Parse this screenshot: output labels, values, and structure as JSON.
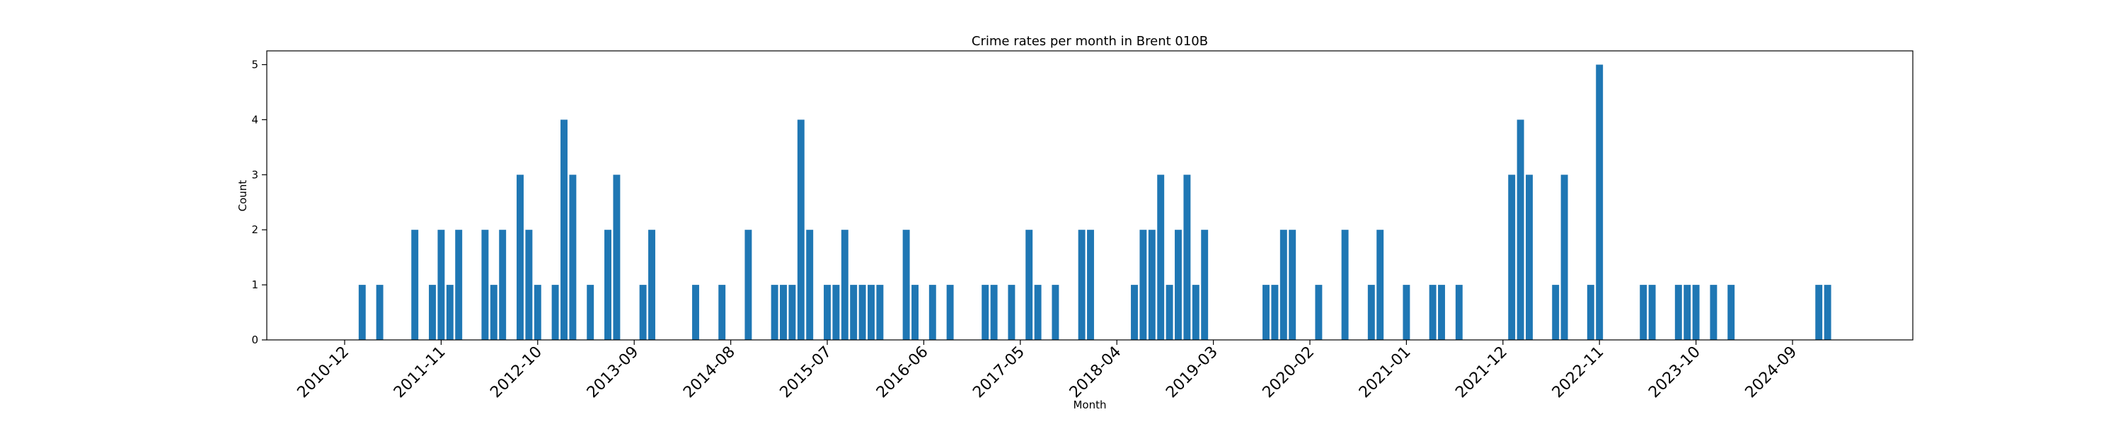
{
  "chart_data": {
    "type": "bar",
    "title": "Crime rates per month in Brent 010B",
    "xlabel": "Month",
    "ylabel": "Count",
    "ylim": [
      0,
      5.25
    ],
    "yticks": [
      "0",
      "1",
      "2",
      "3",
      "4",
      "5"
    ],
    "xticks": [
      "2010-12",
      "2011-11",
      "2012-10",
      "2013-09",
      "2014-08",
      "2015-07",
      "2016-06",
      "2017-05",
      "2018-04",
      "2019-03",
      "2020-02",
      "2021-01",
      "2021-12",
      "2022-11",
      "2023-10",
      "2024-09"
    ],
    "bar_color": "#1f77b4",
    "grid": false,
    "categories": [
      "2011-02",
      "2011-04",
      "2011-08",
      "2011-10",
      "2011-11",
      "2011-12",
      "2012-01",
      "2012-04",
      "2012-05",
      "2012-06",
      "2012-08",
      "2012-09",
      "2012-10",
      "2012-12",
      "2013-01",
      "2013-02",
      "2013-04",
      "2013-06",
      "2013-07",
      "2013-10",
      "2013-11",
      "2014-04",
      "2014-07",
      "2014-10",
      "2015-01",
      "2015-02",
      "2015-03",
      "2015-04",
      "2015-05",
      "2015-07",
      "2015-08",
      "2015-09",
      "2015-10",
      "2015-11",
      "2015-12",
      "2016-01",
      "2016-04",
      "2016-05",
      "2016-07",
      "2016-09",
      "2017-01",
      "2017-02",
      "2017-04",
      "2017-06",
      "2017-07",
      "2017-09",
      "2017-12",
      "2018-01",
      "2018-06",
      "2018-07",
      "2018-08",
      "2018-09",
      "2018-10",
      "2018-11",
      "2018-12",
      "2019-01",
      "2019-02",
      "2019-09",
      "2019-10",
      "2019-11",
      "2019-12",
      "2020-03",
      "2020-06",
      "2020-09",
      "2020-10",
      "2021-01",
      "2021-04",
      "2021-05",
      "2021-07",
      "2022-01",
      "2022-02",
      "2022-03",
      "2022-06",
      "2022-07",
      "2022-10",
      "2022-11",
      "2023-04",
      "2023-05",
      "2023-08",
      "2023-09",
      "2023-10",
      "2023-12",
      "2024-02",
      "2024-12",
      "2025-01"
    ],
    "values": [
      1,
      1,
      2,
      1,
      2,
      1,
      2,
      2,
      1,
      2,
      3,
      2,
      1,
      1,
      4,
      3,
      1,
      2,
      3,
      1,
      2,
      1,
      1,
      2,
      1,
      1,
      1,
      4,
      2,
      1,
      1,
      2,
      1,
      1,
      1,
      1,
      2,
      1,
      1,
      1,
      1,
      1,
      1,
      2,
      1,
      1,
      2,
      2,
      1,
      2,
      2,
      3,
      1,
      2,
      3,
      1,
      2,
      1,
      1,
      2,
      2,
      1,
      2,
      1,
      2,
      1,
      1,
      1,
      1,
      3,
      4,
      3,
      1,
      3,
      1,
      5,
      1,
      1,
      1,
      1,
      1,
      1,
      1,
      1,
      1
    ]
  }
}
